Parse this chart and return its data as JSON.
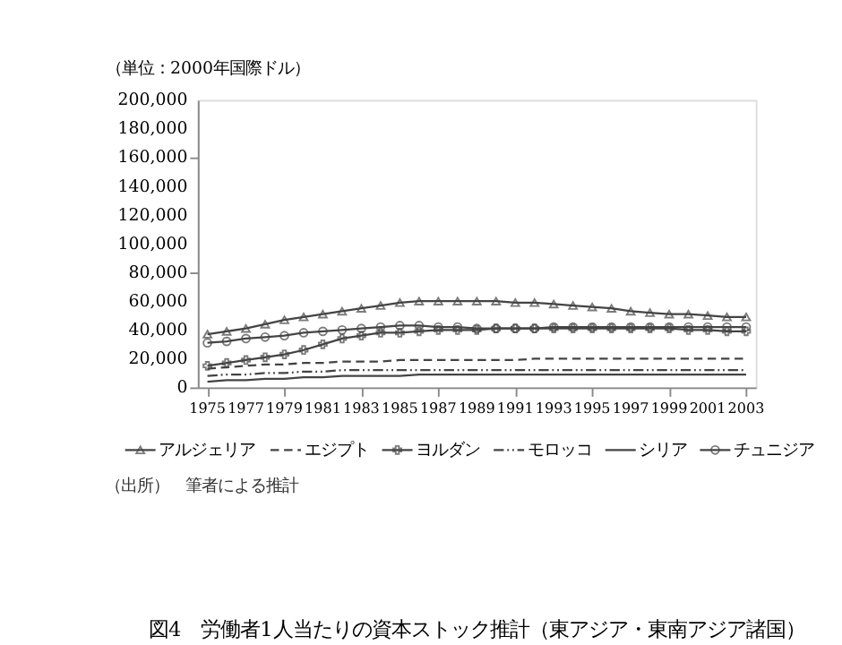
{
  "chart_data": {
    "type": "line",
    "title": "図4　労働者1人当たりの資本ストック推計（東アジア・東南アジア諸国）",
    "ylabel": "（単位：2000年国際ドル）",
    "annotations": [
      "（出所）　筆者による推計"
    ],
    "x": [
      1975,
      1976,
      1977,
      1978,
      1979,
      1980,
      1981,
      1982,
      1983,
      1984,
      1985,
      1986,
      1987,
      1988,
      1989,
      1990,
      1991,
      1992,
      1993,
      1994,
      1995,
      1996,
      1997,
      1998,
      1999,
      2000,
      2001,
      2002,
      2003
    ],
    "xlim": [
      1974.5,
      2003.5
    ],
    "xticks": [
      1975,
      1977,
      1979,
      1981,
      1983,
      1985,
      1987,
      1989,
      1991,
      1993,
      1995,
      1997,
      1999,
      2001,
      2003
    ],
    "ylim": [
      0,
      200000
    ],
    "yticks": [
      {
        "value": 0,
        "label": "0"
      },
      {
        "value": 20000,
        "label": "20,000"
      },
      {
        "value": 40000,
        "label": "40,000"
      },
      {
        "value": 60000,
        "label": "60,000"
      },
      {
        "value": 80000,
        "label": "80,000"
      },
      {
        "value": 100000,
        "label": "100,000"
      },
      {
        "value": 120000,
        "label": "120,000"
      },
      {
        "value": 140000,
        "label": "140,000"
      },
      {
        "value": 160000,
        "label": "160,000"
      },
      {
        "value": 180000,
        "label": "180,000"
      },
      {
        "value": 200000,
        "label": "200,000"
      }
    ],
    "grid": false,
    "legend": "bottom",
    "series": [
      {
        "name": "アルジェリア",
        "color": "#444444",
        "marker": "triangle",
        "line_style": "solid",
        "values": [
          37000,
          39000,
          41000,
          44000,
          47000,
          49000,
          51000,
          53000,
          55000,
          57000,
          59000,
          60000,
          60000,
          60000,
          60000,
          60000,
          59000,
          59000,
          58000,
          57000,
          56000,
          55000,
          53000,
          52000,
          51000,
          51000,
          50000,
          49000,
          49000
        ]
      },
      {
        "name": "エジプト",
        "color": "#444444",
        "marker": "none",
        "line_style": "dashed",
        "values": [
          13000,
          14000,
          15000,
          16000,
          16000,
          17000,
          17000,
          18000,
          18000,
          18000,
          19000,
          19000,
          19000,
          19000,
          19000,
          19000,
          19000,
          20000,
          20000,
          20000,
          20000,
          20000,
          20000,
          20000,
          20000,
          20000,
          20000,
          20000,
          20000
        ]
      },
      {
        "name": "ヨルダン",
        "color": "#444444",
        "marker": "cross",
        "line_style": "solid",
        "values": [
          15000,
          17000,
          19000,
          21000,
          23000,
          26000,
          30000,
          34000,
          36000,
          38000,
          38000,
          39000,
          40000,
          40000,
          40000,
          41000,
          41000,
          41000,
          41000,
          41000,
          41000,
          41000,
          41000,
          41000,
          41000,
          40000,
          40000,
          39000,
          39000
        ]
      },
      {
        "name": "モロッコ",
        "color": "#444444",
        "marker": "none",
        "line_style": "dotted",
        "values": [
          8000,
          9000,
          9000,
          10000,
          10000,
          11000,
          11000,
          12000,
          12000,
          12000,
          12000,
          12000,
          12000,
          12000,
          12000,
          12000,
          12000,
          12000,
          12000,
          12000,
          12000,
          12000,
          12000,
          12000,
          12000,
          12000,
          12000,
          12000,
          12000
        ]
      },
      {
        "name": "シリア",
        "color": "#444444",
        "marker": "none",
        "line_style": "solid",
        "values": [
          4000,
          5000,
          5000,
          6000,
          6000,
          7000,
          7000,
          8000,
          8000,
          8000,
          8000,
          9000,
          9000,
          9000,
          9000,
          9000,
          9000,
          9000,
          9000,
          9000,
          9000,
          9000,
          9000,
          9000,
          9000,
          9000,
          9000,
          9000,
          9000
        ]
      },
      {
        "name": "チュニジア",
        "color": "#444444",
        "marker": "circle",
        "line_style": "solid",
        "values": [
          31000,
          32000,
          34000,
          35000,
          36000,
          38000,
          39000,
          40000,
          41000,
          42000,
          43000,
          43000,
          42000,
          42000,
          41000,
          41000,
          41000,
          41000,
          42000,
          42000,
          42000,
          42000,
          42000,
          42000,
          42000,
          42000,
          42000,
          42000,
          42000
        ]
      }
    ]
  }
}
